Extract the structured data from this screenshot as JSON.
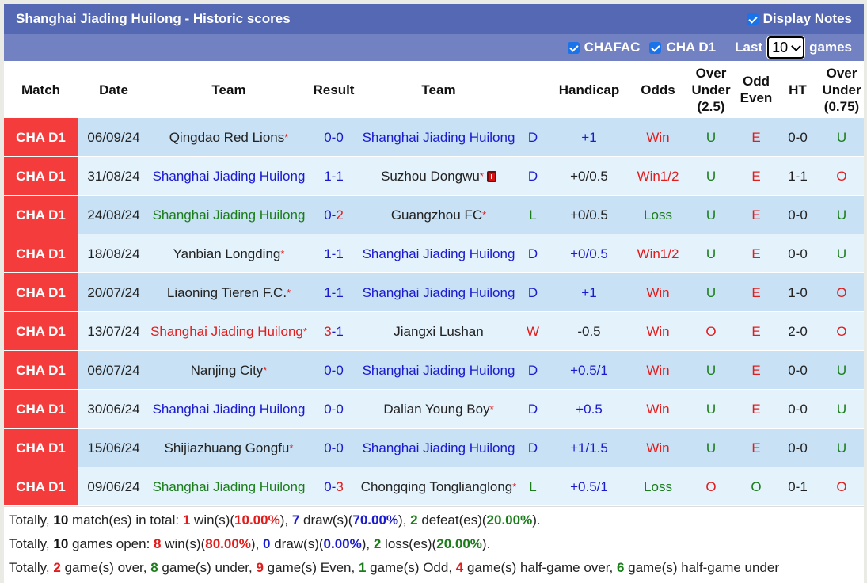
{
  "header": {
    "title": "Shanghai Jiading Huilong - Historic scores",
    "display_notes_label": "Display Notes",
    "display_notes_checked": true
  },
  "filters": {
    "league1_label": "CHAFAC",
    "league1_checked": true,
    "league2_label": "CHA D1",
    "league2_checked": true,
    "last_label": "Last",
    "last_value": "10",
    "games_label": "games"
  },
  "columns": {
    "match": "Match",
    "date": "Date",
    "team1": "Team",
    "result": "Result",
    "team2": "Team",
    "handicap": "Handicap",
    "odds": "Odds",
    "ou_1": "Over",
    "ou_2": "Under",
    "ou_3": "(2.5)",
    "oe_1": "Odd",
    "oe_2": "Even",
    "ht": "HT",
    "ou2_1": "Over",
    "ou2_2": "Under",
    "ou2_3": "(0.75)"
  },
  "colors": {
    "league_bg": "#f53c3c",
    "title_bg": "#5468b4",
    "filter_bg": "#7281c2",
    "row_odd": "#c9e1f4",
    "row_even": "#e4f2fb",
    "blue": "#1a1acf",
    "green": "#1a7d1a",
    "red": "#e21b1b"
  },
  "rows": [
    {
      "league": "CHA D1",
      "date": "06/09/24",
      "home": "Qingdao Red Lions",
      "home_star": "*",
      "home_color": "dark",
      "score_h": "0",
      "score_a": "0",
      "score_h_color": "blue",
      "score_a_color": "blue",
      "away": "Shanghai Jiading Huilong",
      "away_star": "",
      "away_color": "blue",
      "away_card": false,
      "wdl": "D",
      "wdl_color": "blue",
      "handicap": "+1",
      "handicap_color": "blue",
      "odds": "Win",
      "odds_color": "red",
      "ou": "U",
      "ou_color": "green",
      "oe": "E",
      "oe_color": "red",
      "ht": "0-0",
      "ou2": "U",
      "ou2_color": "green"
    },
    {
      "league": "CHA D1",
      "date": "31/08/24",
      "home": "Shanghai Jiading Huilong",
      "home_star": "",
      "home_color": "blue",
      "score_h": "1",
      "score_a": "1",
      "score_h_color": "blue",
      "score_a_color": "blue",
      "away": "Suzhou Dongwu",
      "away_star": "*",
      "away_color": "dark",
      "away_card": true,
      "wdl": "D",
      "wdl_color": "blue",
      "handicap": "+0/0.5",
      "handicap_color": "dark",
      "odds": "Win1/2",
      "odds_color": "red",
      "ou": "U",
      "ou_color": "green",
      "oe": "E",
      "oe_color": "red",
      "ht": "1-1",
      "ou2": "O",
      "ou2_color": "red"
    },
    {
      "league": "CHA D1",
      "date": "24/08/24",
      "home": "Shanghai Jiading Huilong",
      "home_star": "",
      "home_color": "green",
      "score_h": "0",
      "score_a": "2",
      "score_h_color": "blue",
      "score_a_color": "red",
      "away": "Guangzhou FC",
      "away_star": "*",
      "away_color": "dark",
      "away_card": false,
      "wdl": "L",
      "wdl_color": "green",
      "handicap": "+0/0.5",
      "handicap_color": "dark",
      "odds": "Loss",
      "odds_color": "green",
      "ou": "U",
      "ou_color": "green",
      "oe": "E",
      "oe_color": "red",
      "ht": "0-0",
      "ou2": "U",
      "ou2_color": "green"
    },
    {
      "league": "CHA D1",
      "date": "18/08/24",
      "home": "Yanbian Longding",
      "home_star": "*",
      "home_color": "dark",
      "score_h": "1",
      "score_a": "1",
      "score_h_color": "blue",
      "score_a_color": "blue",
      "away": "Shanghai Jiading Huilong",
      "away_star": "",
      "away_color": "blue",
      "away_card": false,
      "wdl": "D",
      "wdl_color": "blue",
      "handicap": "+0/0.5",
      "handicap_color": "blue",
      "odds": "Win1/2",
      "odds_color": "red",
      "ou": "U",
      "ou_color": "green",
      "oe": "E",
      "oe_color": "red",
      "ht": "0-0",
      "ou2": "U",
      "ou2_color": "green"
    },
    {
      "league": "CHA D1",
      "date": "20/07/24",
      "home": "Liaoning Tieren F.C.",
      "home_star": "*",
      "home_color": "dark",
      "score_h": "1",
      "score_a": "1",
      "score_h_color": "blue",
      "score_a_color": "blue",
      "away": "Shanghai Jiading Huilong",
      "away_star": "",
      "away_color": "blue",
      "away_card": false,
      "wdl": "D",
      "wdl_color": "blue",
      "handicap": "+1",
      "handicap_color": "blue",
      "odds": "Win",
      "odds_color": "red",
      "ou": "U",
      "ou_color": "green",
      "oe": "E",
      "oe_color": "red",
      "ht": "1-0",
      "ou2": "O",
      "ou2_color": "red"
    },
    {
      "league": "CHA D1",
      "date": "13/07/24",
      "home": "Shanghai Jiading Huilong",
      "home_star": "*",
      "home_color": "red",
      "score_h": "3",
      "score_a": "1",
      "score_h_color": "red",
      "score_a_color": "blue",
      "away": "Jiangxi Lushan",
      "away_star": "",
      "away_color": "dark",
      "away_card": false,
      "wdl": "W",
      "wdl_color": "red",
      "handicap": "-0.5",
      "handicap_color": "dark",
      "odds": "Win",
      "odds_color": "red",
      "ou": "O",
      "ou_color": "red",
      "oe": "E",
      "oe_color": "red",
      "ht": "2-0",
      "ou2": "O",
      "ou2_color": "red"
    },
    {
      "league": "CHA D1",
      "date": "06/07/24",
      "home": "Nanjing City",
      "home_star": "*",
      "home_color": "dark",
      "score_h": "0",
      "score_a": "0",
      "score_h_color": "blue",
      "score_a_color": "blue",
      "away": "Shanghai Jiading Huilong",
      "away_star": "",
      "away_color": "blue",
      "away_card": false,
      "wdl": "D",
      "wdl_color": "blue",
      "handicap": "+0.5/1",
      "handicap_color": "blue",
      "odds": "Win",
      "odds_color": "red",
      "ou": "U",
      "ou_color": "green",
      "oe": "E",
      "oe_color": "red",
      "ht": "0-0",
      "ou2": "U",
      "ou2_color": "green"
    },
    {
      "league": "CHA D1",
      "date": "30/06/24",
      "home": "Shanghai Jiading Huilong",
      "home_star": "",
      "home_color": "blue",
      "score_h": "0",
      "score_a": "0",
      "score_h_color": "blue",
      "score_a_color": "blue",
      "away": "Dalian Young Boy",
      "away_star": "*",
      "away_color": "dark",
      "away_card": false,
      "wdl": "D",
      "wdl_color": "blue",
      "handicap": "+0.5",
      "handicap_color": "blue",
      "odds": "Win",
      "odds_color": "red",
      "ou": "U",
      "ou_color": "green",
      "oe": "E",
      "oe_color": "red",
      "ht": "0-0",
      "ou2": "U",
      "ou2_color": "green"
    },
    {
      "league": "CHA D1",
      "date": "15/06/24",
      "home": "Shijiazhuang Gongfu",
      "home_star": "*",
      "home_color": "dark",
      "score_h": "0",
      "score_a": "0",
      "score_h_color": "blue",
      "score_a_color": "blue",
      "away": "Shanghai Jiading Huilong",
      "away_star": "",
      "away_color": "blue",
      "away_card": false,
      "wdl": "D",
      "wdl_color": "blue",
      "handicap": "+1/1.5",
      "handicap_color": "blue",
      "odds": "Win",
      "odds_color": "red",
      "ou": "U",
      "ou_color": "green",
      "oe": "E",
      "oe_color": "red",
      "ht": "0-0",
      "ou2": "U",
      "ou2_color": "green"
    },
    {
      "league": "CHA D1",
      "date": "09/06/24",
      "home": "Shanghai Jiading Huilong",
      "home_star": "",
      "home_color": "green",
      "score_h": "0",
      "score_a": "3",
      "score_h_color": "blue",
      "score_a_color": "red",
      "away": "Chongqing Tonglianglong",
      "away_star": "*",
      "away_color": "dark",
      "away_card": false,
      "wdl": "L",
      "wdl_color": "green",
      "handicap": "+0.5/1",
      "handicap_color": "blue",
      "odds": "Loss",
      "odds_color": "green",
      "ou": "O",
      "ou_color": "red",
      "oe": "O",
      "oe_color": "green",
      "ht": "0-1",
      "ou2": "O",
      "ou2_color": "red"
    }
  ],
  "summary": [
    [
      {
        "t": "Totally, ",
        "c": ""
      },
      {
        "t": "10",
        "c": "s-dark",
        "b": true
      },
      {
        "t": " match(es) in total: ",
        "c": ""
      },
      {
        "t": "1",
        "c": "s-red",
        "b": true
      },
      {
        "t": " win(s)(",
        "c": ""
      },
      {
        "t": "10.00%",
        "c": "s-red",
        "b": true
      },
      {
        "t": "), ",
        "c": ""
      },
      {
        "t": "7",
        "c": "s-blue",
        "b": true
      },
      {
        "t": " draw(s)(",
        "c": ""
      },
      {
        "t": "70.00%",
        "c": "s-blue",
        "b": true
      },
      {
        "t": "), ",
        "c": ""
      },
      {
        "t": "2",
        "c": "s-green",
        "b": true
      },
      {
        "t": " defeat(es)(",
        "c": ""
      },
      {
        "t": "20.00%",
        "c": "s-green",
        "b": true
      },
      {
        "t": ").",
        "c": ""
      }
    ],
    [
      {
        "t": "Totally, ",
        "c": ""
      },
      {
        "t": "10",
        "c": "s-dark",
        "b": true
      },
      {
        "t": " games open: ",
        "c": ""
      },
      {
        "t": "8",
        "c": "s-red",
        "b": true
      },
      {
        "t": " win(s)(",
        "c": ""
      },
      {
        "t": "80.00%",
        "c": "s-red",
        "b": true
      },
      {
        "t": "), ",
        "c": ""
      },
      {
        "t": "0",
        "c": "s-blue",
        "b": true
      },
      {
        "t": " draw(s)(",
        "c": ""
      },
      {
        "t": "0.00%",
        "c": "s-blue",
        "b": true
      },
      {
        "t": "), ",
        "c": ""
      },
      {
        "t": "2",
        "c": "s-green",
        "b": true
      },
      {
        "t": " loss(es)(",
        "c": ""
      },
      {
        "t": "20.00%",
        "c": "s-green",
        "b": true
      },
      {
        "t": ").",
        "c": ""
      }
    ],
    [
      {
        "t": "Totally, ",
        "c": ""
      },
      {
        "t": "2",
        "c": "s-red",
        "b": true
      },
      {
        "t": " game(s) over, ",
        "c": ""
      },
      {
        "t": "8",
        "c": "s-green",
        "b": true
      },
      {
        "t": " game(s) under, ",
        "c": ""
      },
      {
        "t": "9",
        "c": "s-red",
        "b": true
      },
      {
        "t": " game(s) Even, ",
        "c": ""
      },
      {
        "t": "1",
        "c": "s-green",
        "b": true
      },
      {
        "t": " game(s) Odd, ",
        "c": ""
      },
      {
        "t": "4",
        "c": "s-red",
        "b": true
      },
      {
        "t": " game(s) half-game over, ",
        "c": ""
      },
      {
        "t": "6",
        "c": "s-green",
        "b": true
      },
      {
        "t": " game(s) half-game under",
        "c": ""
      }
    ]
  ]
}
